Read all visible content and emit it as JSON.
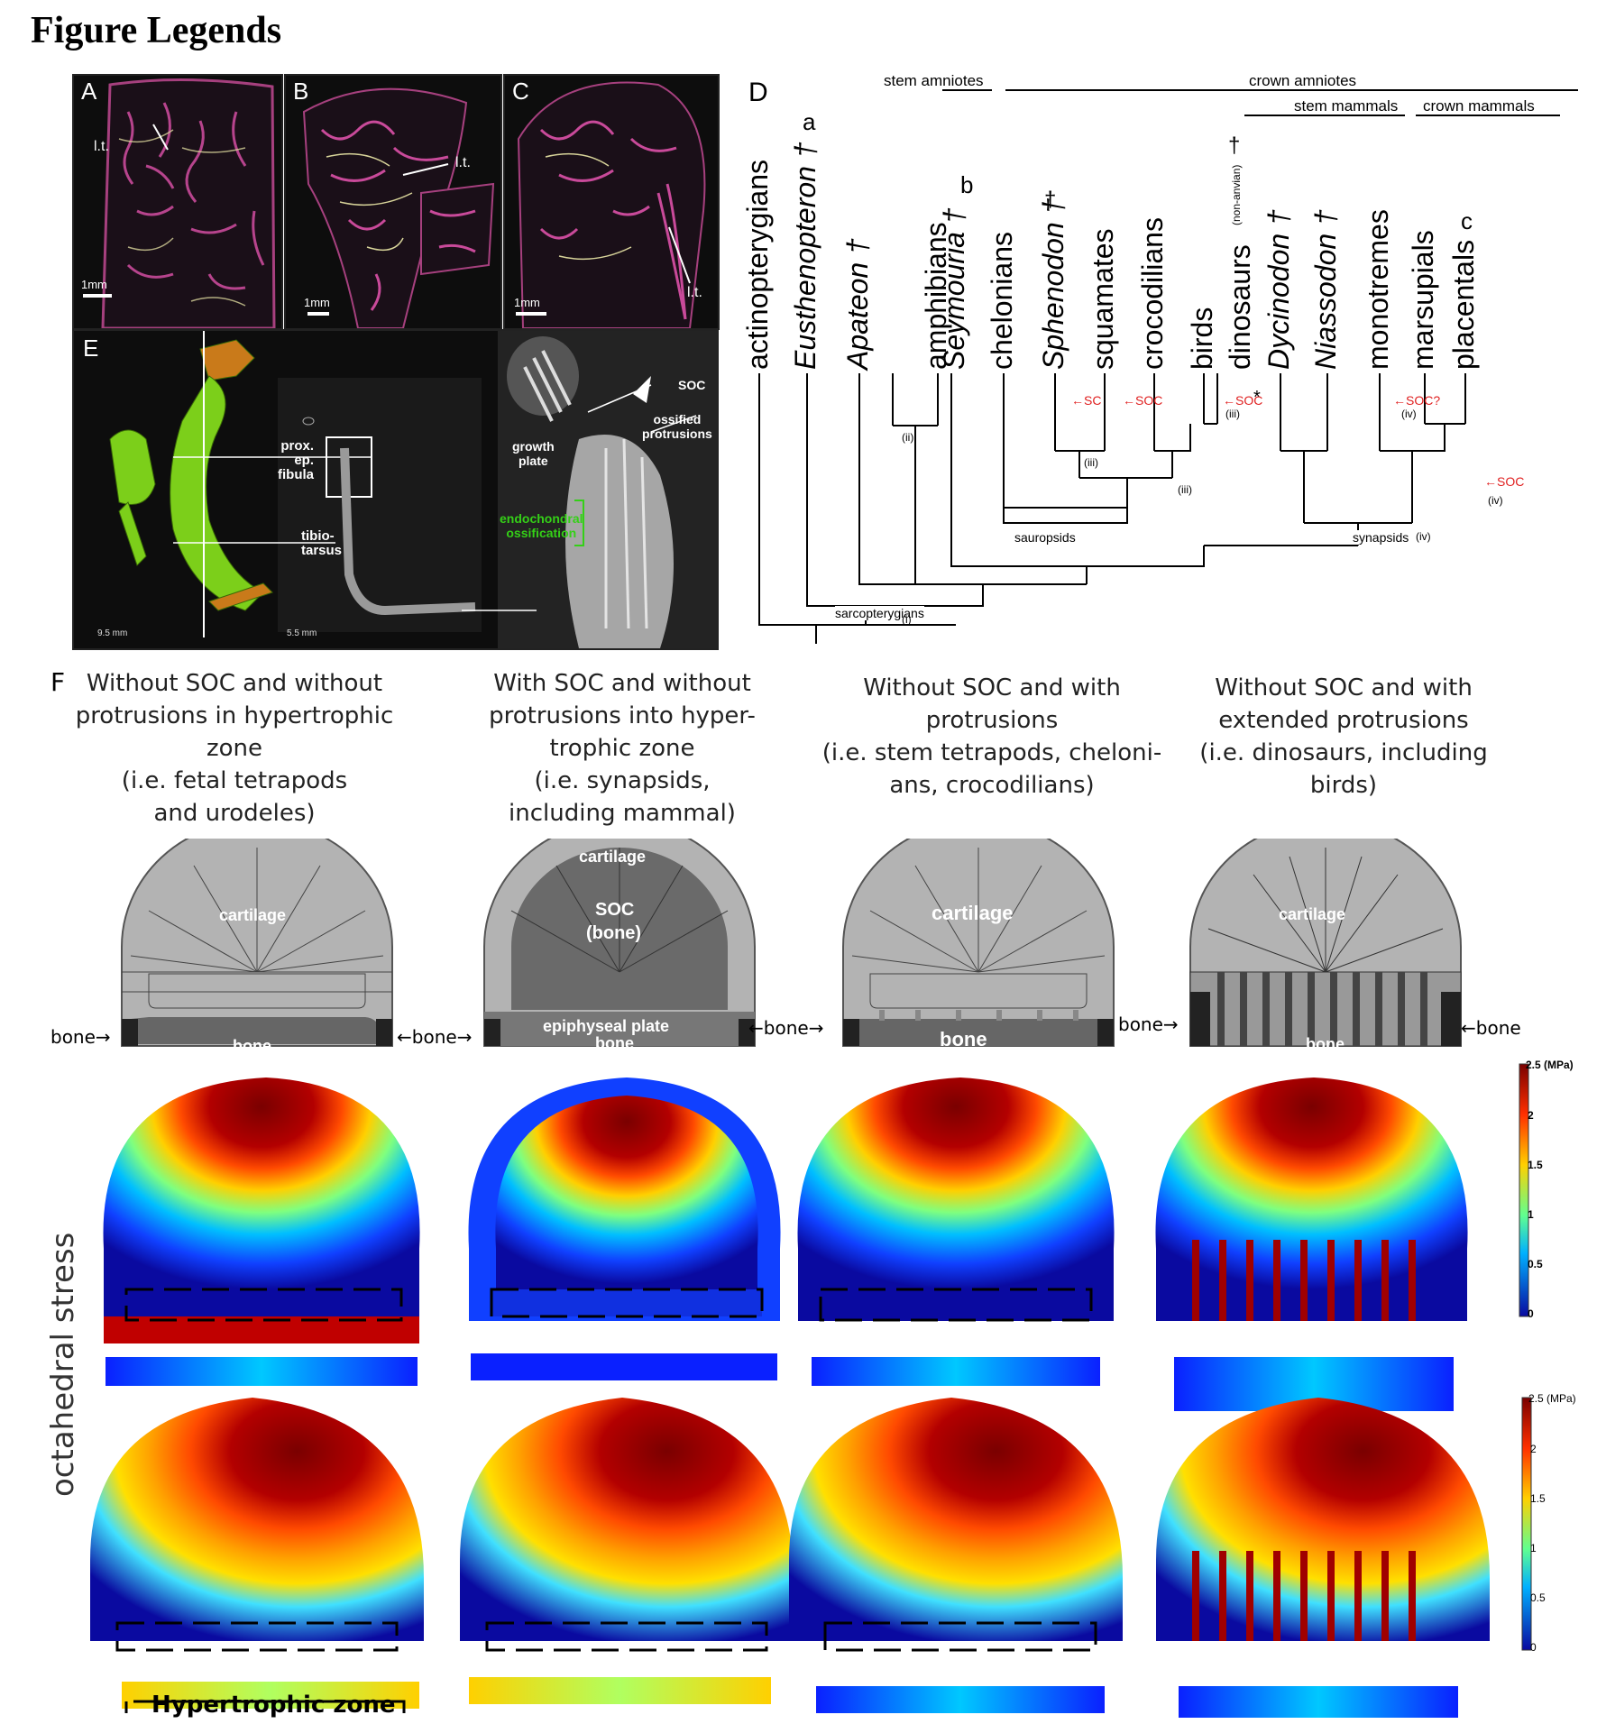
{
  "title": "Figure Legends",
  "panels": {
    "A": {
      "label": "A",
      "ann": "l.t.",
      "scale": "1mm"
    },
    "B": {
      "label": "B",
      "ann": "l.t.",
      "scale": "1mm"
    },
    "C": {
      "label": "C",
      "ann": "l.t.",
      "scale": "1mm"
    },
    "E": {
      "label": "E",
      "ann": [
        "prox.",
        "ep.",
        "fibula",
        "tibio-",
        "tarsus"
      ],
      "scale1": "9.5 mm",
      "scale2": "5.5 mm",
      "micro": {
        "soc": "SOC",
        "ossified": "ossified",
        "protrusions": "protrusions",
        "growth": "growth",
        "plate": "plate",
        "endo1": "endochondral",
        "endo2": "ossification"
      }
    }
  },
  "tree": {
    "label": "D",
    "groups": {
      "stem_amniotes": "stem amniotes",
      "crown_amniotes": "crown amniotes",
      "stem_mammals": "stem mammals",
      "crown_mammals": "crown mammals"
    },
    "taxa": [
      "actinopterygians",
      "Eusthenopteron †",
      "Apateon †",
      "amphibians",
      "Seymouria †",
      "chelonians",
      "Sphenodon †",
      "squamates",
      "crocodilians",
      "birds",
      "dinosaurs",
      "Dycinodon †",
      "Niassodon †",
      "monotremes",
      "marsupials",
      "placentals"
    ],
    "taxa_letters": [
      "a",
      "b",
      "c"
    ],
    "dino_note": "(non-anvian)",
    "dagger": "†",
    "star": "*",
    "nodes": {
      "sarcopterygians": "sarcopterygians",
      "sauropsids": "sauropsids",
      "synapsids": "synapsids"
    },
    "soc_labels": {
      "sc": "SC",
      "soc": "SOC",
      "soc_q": "SOC?",
      "arrow": "←"
    },
    "romans": [
      "(i)",
      "(ii)",
      "(iii)",
      "(iv)"
    ]
  },
  "panelF": {
    "label": "F",
    "captions": [
      "Without SOC and without\nprotrusions in hypertrophic\nzone\n(i.e. fetal tetrapods\nand urodeles)",
      "With SOC and without\nprotrusions into hyper-\ntrophic zone\n(i.e. synapsids,\nincluding mammal)",
      "Without SOC and with\nprotrusions\n(i.e. stem tetrapods, cheloni-\nans, crocodilians)",
      "Without SOC and with\nextended protrusions\n(i.e. dinosaurs, including\nbirds)"
    ],
    "labels": {
      "cartilage": "cartilage",
      "bone": "bone",
      "soc": "SOC",
      "soc_bone": "(bone)",
      "epiphyseal": "epiphyseal plate",
      "arrow_right": "→",
      "arrow_left": "←"
    },
    "side_label": "octahedral stress",
    "hyper_label": "Hypertrophic zone",
    "colorbar": {
      "unit": "2.5 (MPa)",
      "ticks": [
        "2",
        "1.5",
        "1",
        "0.5",
        "0"
      ]
    },
    "colors": {
      "high": "#7a0000",
      "mid": "#ffd000",
      "low": "#0a0aa0"
    }
  }
}
